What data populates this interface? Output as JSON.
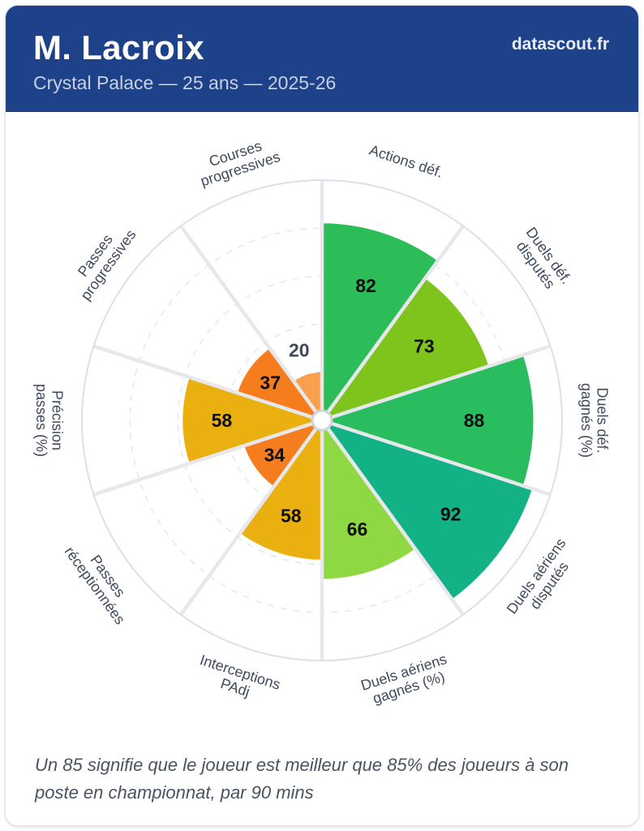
{
  "header": {
    "title": "M. Lacroix",
    "subtitle": "Crystal Palace — 25 ans — 2025-26",
    "brand": "datascout.fr",
    "background_color": "#1e4289"
  },
  "chart_data": {
    "type": "pie",
    "subtype": "percentile-pizza-polar-bars",
    "title": "M. Lacroix percentile pizza",
    "scale_min": 0,
    "scale_max": 100,
    "gridlines": [
      20,
      40,
      60,
      80,
      100
    ],
    "grid_style": "dashed inner rings, solid outer ring, 10 radial spokes",
    "params": [
      {
        "label": "Actions déf.",
        "lines": [
          "Actions déf."
        ],
        "value": 82,
        "color": "#2dbd58"
      },
      {
        "label": "Duels déf. disputés",
        "lines": [
          "Duels déf.",
          "disputés"
        ],
        "value": 73,
        "color": "#7ec41d"
      },
      {
        "label": "Duels déf. gagnés (%)",
        "lines": [
          "Duels déf.",
          "gagnés (%)"
        ],
        "value": 88,
        "color": "#2abd60"
      },
      {
        "label": "Duels aériens disputés",
        "lines": [
          "Duels aériens",
          "disputés"
        ],
        "value": 92,
        "color": "#12b286"
      },
      {
        "label": "Duels aériens gagnés (%)",
        "lines": [
          "Duels aériens",
          "gagnés (%)"
        ],
        "value": 66,
        "color": "#8ed943"
      },
      {
        "label": "Interceptions PAdj",
        "lines": [
          "Interceptions",
          "PAdj"
        ],
        "value": 58,
        "color": "#eab00f"
      },
      {
        "label": "Passes réceptionnées",
        "lines": [
          "Passes",
          "réceptionnées"
        ],
        "value": 34,
        "color": "#f57d1e"
      },
      {
        "label": "Précision passes (%)",
        "lines": [
          "Précision",
          "passes (%)"
        ],
        "value": 58,
        "color": "#eab00f"
      },
      {
        "label": "Passes progressives",
        "lines": [
          "Passes",
          "progressives"
        ],
        "value": 37,
        "color": "#f57d1e"
      },
      {
        "label": "Courses progressives",
        "lines": [
          "Courses",
          "progressives"
        ],
        "value": 20,
        "color": "#f9a04d"
      }
    ],
    "value_label_color_inside": "#0d0d0d",
    "value_label_color_outside": "#3e4a5c",
    "axis_label_color": "#3e4a5c",
    "legend_position": "none"
  },
  "footer": {
    "note": "Un 85 signifie que le joueur est meilleur que 85% des joueurs à son poste en championnat, par 90 mins"
  }
}
